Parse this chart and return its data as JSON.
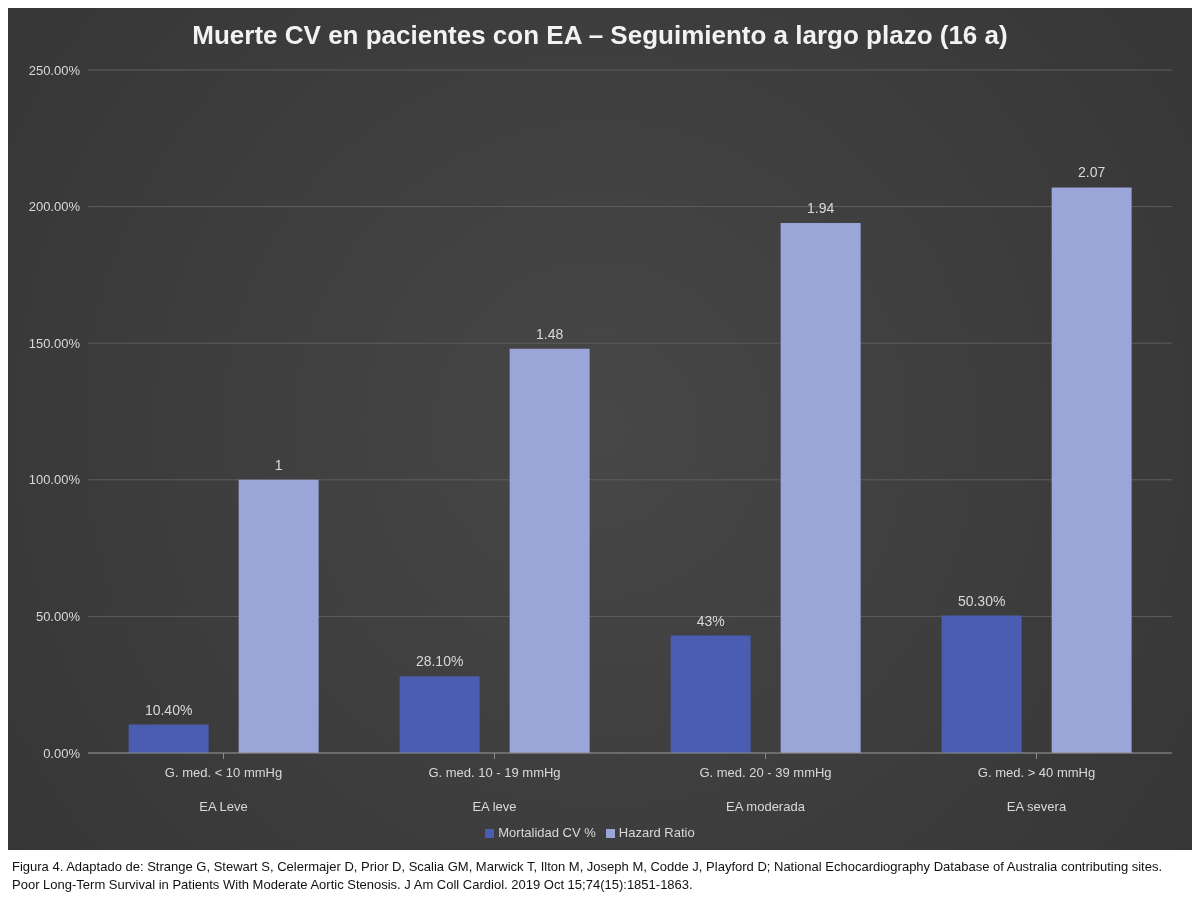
{
  "chart_data": {
    "type": "bar",
    "title": "Muerte CV en pacientes con EA – Seguimiento a largo plazo (16 a)",
    "categories": [
      "G. med. < 10 mmHg\nEA Leve",
      "G. med. 10 - 19 mmHg\nEA leve",
      "G. med. 20 - 39 mmHg\nEA moderada",
      "G. med. > 40 mmHg\nEA severa"
    ],
    "series": [
      {
        "name": "Mortalidad CV %",
        "color": "#4a5db0",
        "values": [
          10.4,
          28.1,
          43,
          50.3
        ],
        "value_labels": [
          "10.40%",
          "28.10%",
          "43%",
          "50.30%"
        ]
      },
      {
        "name": "Hazard Ratio",
        "color": "#9aa5d8",
        "axis": "y2",
        "values": [
          1,
          1.48,
          1.94,
          2.07
        ],
        "value_labels": [
          "1",
          "1.48",
          "1.94",
          "2.07"
        ]
      }
    ],
    "ylim": [
      0,
      250
    ],
    "y2lim": [
      0,
      2.5
    ],
    "yticks": [
      {
        "value": 0,
        "label": "0.00%"
      },
      {
        "value": 50,
        "label": "50.00%"
      },
      {
        "value": 100,
        "label": "100.00%"
      },
      {
        "value": 150,
        "label": "150.00%"
      },
      {
        "value": 200,
        "label": "200.00%"
      },
      {
        "value": 250,
        "label": "250.00%"
      }
    ],
    "grid": "y",
    "legend": "bottom",
    "annotations": [
      "Figura 4. Adaptado de: Strange G, Stewart S, Celermajer D, Prior D, Scalia GM, Marwick T, Ilton M, Joseph M, Codde J, Playford D; National Echocardiography Database of Australia contributing sites. Poor Long-Term Survival in Patients With Moderate Aortic Stenosis. J Am Coll Cardiol. 2019 Oct 15;74(15):1851-1863."
    ]
  }
}
